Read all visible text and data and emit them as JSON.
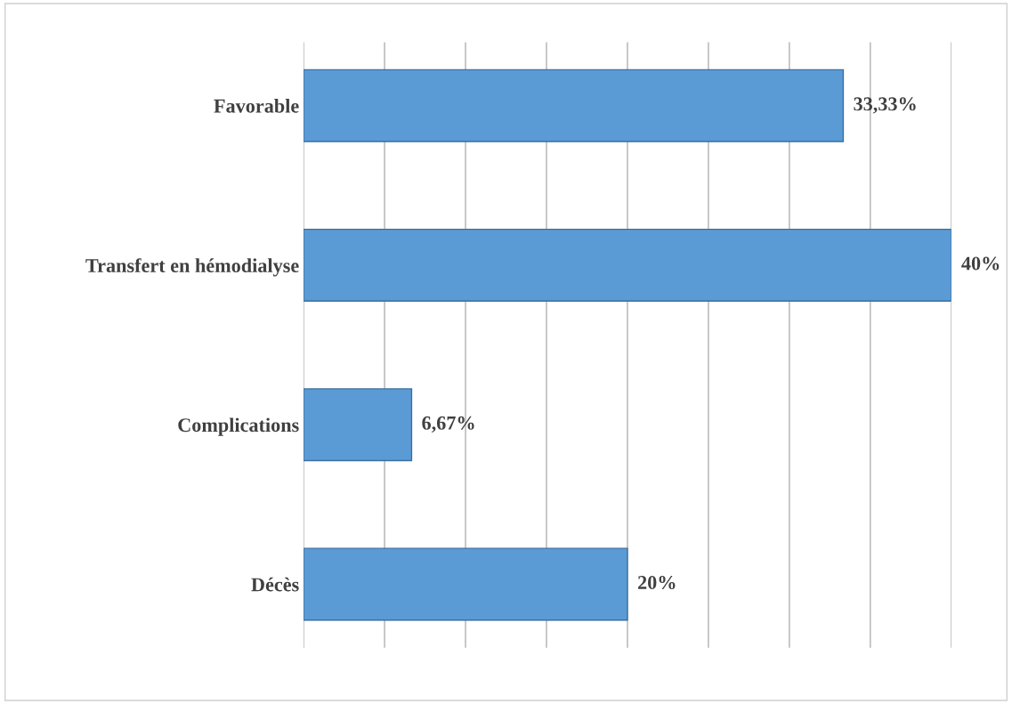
{
  "chart_data": {
    "type": "bar",
    "orientation": "horizontal",
    "categories": [
      "Favorable",
      "Transfert en hémodialyse",
      "Complications",
      "Décès"
    ],
    "values": [
      33.33,
      40,
      6.67,
      20
    ],
    "value_labels": [
      "33,33%",
      "40%",
      "6,67%",
      "20%"
    ],
    "color": "#5b9bd5",
    "xlim": [
      0,
      40
    ],
    "xticks": [
      {
        "value": 0,
        "label": null
      },
      {
        "value": 5,
        "label": null
      },
      {
        "value": 10,
        "label": null
      },
      {
        "value": 15,
        "label": null
      },
      {
        "value": 20,
        "label": null
      },
      {
        "value": 25,
        "label": null
      },
      {
        "value": 30,
        "label": null
      },
      {
        "value": 35,
        "label": null
      },
      {
        "value": 40,
        "label": null
      }
    ],
    "grid": "x",
    "tick_labels": "y"
  }
}
